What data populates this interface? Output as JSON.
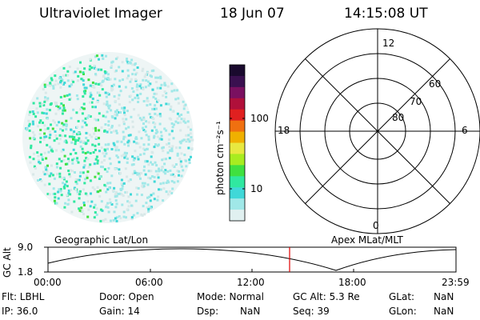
{
  "header": {
    "title": "Ultraviolet Imager",
    "date": "18 Jun 07",
    "time": "14:15:08 UT"
  },
  "colorbar": {
    "unit_label": "photon cm⁻²s⁻¹",
    "ticks": [
      "100",
      "10"
    ],
    "colors": [
      "#1a0a2e",
      "#3a1050",
      "#7a1060",
      "#b0103a",
      "#e02020",
      "#f07010",
      "#f0b000",
      "#e8e840",
      "#a8ec20",
      "#40e040",
      "#30e8a0",
      "#40d8d8",
      "#a0e8e8",
      "#e0f0f0"
    ]
  },
  "polar_plot": {
    "hour_labels": [
      "12",
      "18",
      "6",
      "0"
    ],
    "lat_labels": [
      "60",
      "70",
      "80"
    ]
  },
  "timeline": {
    "left_label": "Geographic Lat/Lon",
    "right_label": "Apex MLat/MLT",
    "axis_title": "GC Alt",
    "y_ticks": [
      "9.0",
      "1.8"
    ],
    "x_ticks": [
      "00:00",
      "06:00",
      "12:00",
      "18:00",
      "23:59"
    ],
    "marker_color": "#e00000"
  },
  "footer": {
    "row1": {
      "flt": "Flt: LBHL",
      "door": "Door: Open",
      "mode": "Mode: Normal",
      "gcalt": "GC Alt: 5.3 Re",
      "glat_label": "GLat:",
      "glat_value": "NaN"
    },
    "row2": {
      "ip": "IP: 36.0",
      "gain": "Gain: 14",
      "dsp_label": "Dsp:",
      "dsp_value": "NaN",
      "seq": "Seq: 39",
      "glon_label": "GLon:",
      "glon_value": "NaN"
    }
  }
}
